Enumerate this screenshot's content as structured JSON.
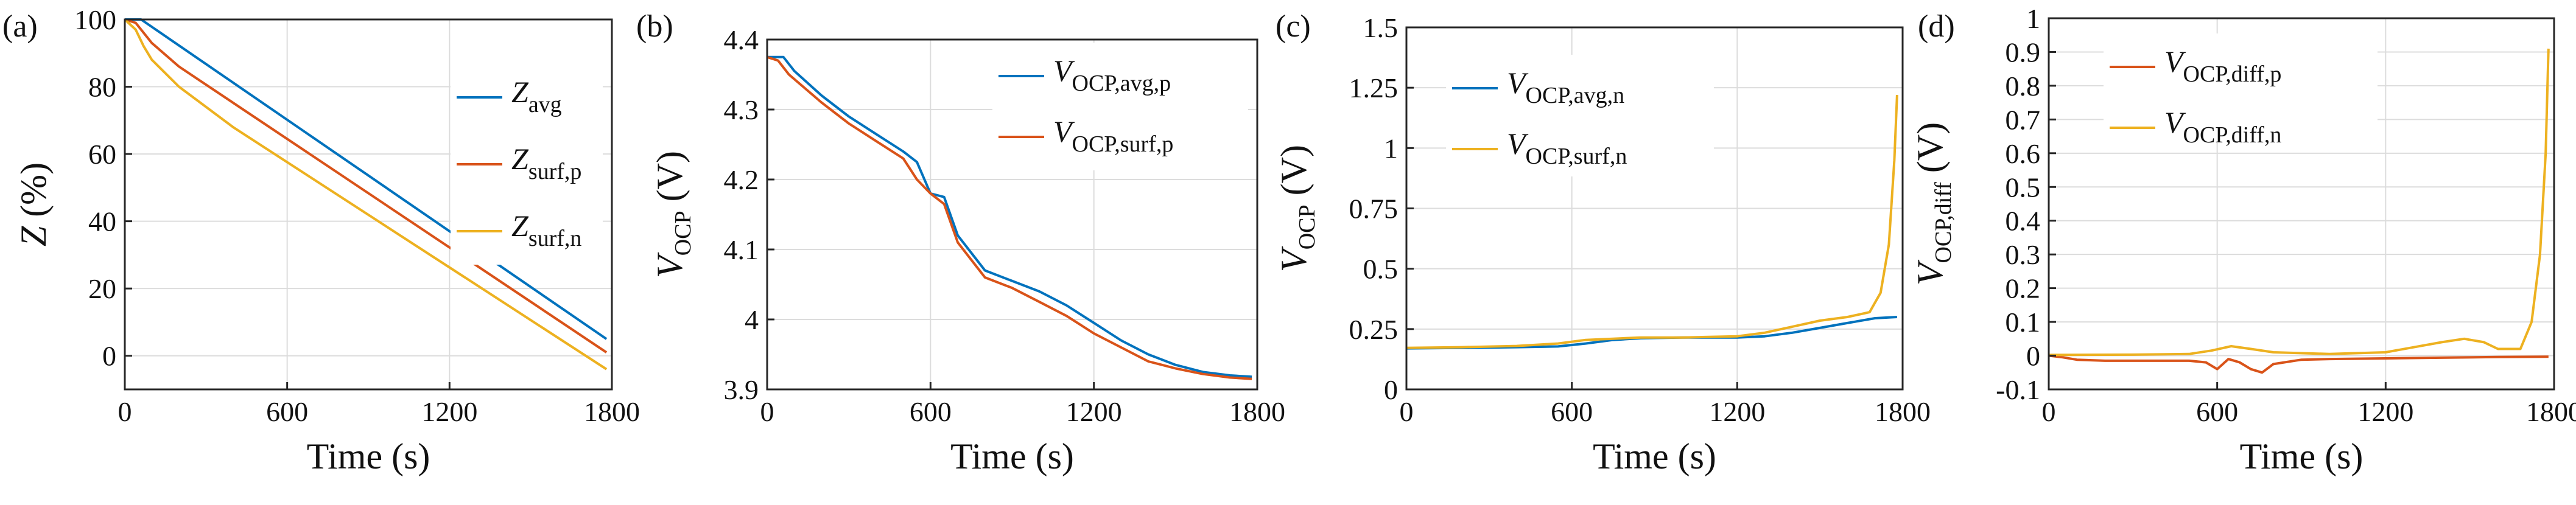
{
  "chart_data": [
    {
      "panel": "(a)",
      "type": "line",
      "xlabel": "Time (s)",
      "ylabel": "Z (%)",
      "ylabel_main": "Z",
      "ylabel_sub": "",
      "ylabel_tail": " (%)",
      "xlim": [
        0,
        1800
      ],
      "ylim": [
        -10,
        100
      ],
      "xticks": [
        0,
        600,
        1200,
        1800
      ],
      "yticks": [
        0,
        20,
        40,
        60,
        80,
        100
      ],
      "grid": true,
      "legend_position": "top-right",
      "series": [
        {
          "name": "Z_avg",
          "main": "Z",
          "sub": "avg",
          "color": "#0072BD",
          "x": [
            0,
            60,
            1780
          ],
          "y": [
            100,
            100,
            5
          ]
        },
        {
          "name": "Z_surf,p",
          "main": "Z",
          "sub": "surf,p",
          "color": "#D95319",
          "x": [
            0,
            40,
            70,
            100,
            200,
            1780
          ],
          "y": [
            100,
            99,
            96,
            93,
            86,
            1
          ]
        },
        {
          "name": "Z_surf,n",
          "main": "Z",
          "sub": "surf,n",
          "color": "#EDB120",
          "x": [
            0,
            40,
            70,
            100,
            200,
            400,
            1780
          ],
          "y": [
            100,
            97,
            92,
            88,
            80,
            68,
            -4
          ]
        }
      ]
    },
    {
      "panel": "(b)",
      "type": "line",
      "xlabel": "Time (s)",
      "ylabel": "V_OCP (V)",
      "ylabel_main": "V",
      "ylabel_sub": "OCP",
      "ylabel_tail": " (V)",
      "xlim": [
        0,
        1800
      ],
      "ylim": [
        3.9,
        4.4
      ],
      "xticks": [
        0,
        600,
        1200,
        1800
      ],
      "yticks": [
        3.9,
        4,
        4.1,
        4.2,
        4.3,
        4.4
      ],
      "grid": true,
      "legend_position": "top-right",
      "series": [
        {
          "name": "V_OCP,avg,p",
          "main": "V",
          "sub": "OCP,avg,p",
          "color": "#0072BD",
          "x": [
            0,
            60,
            100,
            200,
            300,
            400,
            500,
            550,
            600,
            650,
            700,
            800,
            900,
            1000,
            1100,
            1200,
            1300,
            1400,
            1500,
            1600,
            1700,
            1780
          ],
          "y": [
            4.375,
            4.375,
            4.355,
            4.32,
            4.29,
            4.265,
            4.24,
            4.225,
            4.18,
            4.175,
            4.12,
            4.07,
            4.055,
            4.04,
            4.02,
            3.995,
            3.97,
            3.95,
            3.935,
            3.925,
            3.92,
            3.918
          ]
        },
        {
          "name": "V_OCP,surf,p",
          "main": "V",
          "sub": "OCP,surf,p",
          "color": "#D95319",
          "x": [
            0,
            40,
            80,
            200,
            300,
            400,
            500,
            550,
            600,
            650,
            700,
            800,
            900,
            1000,
            1100,
            1200,
            1300,
            1400,
            1500,
            1600,
            1700,
            1780
          ],
          "y": [
            4.375,
            4.37,
            4.35,
            4.31,
            4.28,
            4.255,
            4.23,
            4.2,
            4.18,
            4.165,
            4.11,
            4.06,
            4.045,
            4.025,
            4.005,
            3.98,
            3.96,
            3.94,
            3.93,
            3.922,
            3.917,
            3.915
          ]
        }
      ]
    },
    {
      "panel": "(c)",
      "type": "line",
      "xlabel": "Time (s)",
      "ylabel": "V_OCP (V)",
      "ylabel_main": "V",
      "ylabel_sub": "OCP",
      "ylabel_tail": " (V)",
      "xlim": [
        0,
        1800
      ],
      "ylim": [
        0,
        1.5
      ],
      "xticks": [
        0,
        600,
        1200,
        1800
      ],
      "yticks": [
        0,
        0.25,
        0.5,
        0.75,
        1,
        1.25,
        1.5
      ],
      "grid": true,
      "legend_position": "top-left",
      "series": [
        {
          "name": "V_OCP,avg,n",
          "main": "V",
          "sub": "OCP,avg,n",
          "color": "#0072BD",
          "x": [
            0,
            200,
            400,
            550,
            650,
            750,
            850,
            1000,
            1200,
            1300,
            1400,
            1500,
            1600,
            1700,
            1780
          ],
          "y": [
            0.17,
            0.172,
            0.175,
            0.178,
            0.19,
            0.205,
            0.212,
            0.215,
            0.215,
            0.22,
            0.235,
            0.255,
            0.275,
            0.295,
            0.3
          ]
        },
        {
          "name": "V_OCP,surf,n",
          "main": "V",
          "sub": "OCP,surf,n",
          "color": "#EDB120",
          "x": [
            0,
            200,
            400,
            550,
            650,
            750,
            850,
            1000,
            1200,
            1300,
            1400,
            1500,
            1600,
            1680,
            1720,
            1750,
            1770,
            1780
          ],
          "y": [
            0.172,
            0.175,
            0.18,
            0.19,
            0.205,
            0.21,
            0.215,
            0.215,
            0.22,
            0.235,
            0.26,
            0.285,
            0.3,
            0.32,
            0.4,
            0.6,
            0.95,
            1.22
          ]
        }
      ]
    },
    {
      "panel": "(d)",
      "type": "line",
      "xlabel": "Time (s)",
      "ylabel": "V_OCP,diff (V)",
      "ylabel_main": "V",
      "ylabel_sub": "OCP,diff",
      "ylabel_tail": " (V)",
      "xlim": [
        0,
        1800
      ],
      "ylim": [
        -0.1,
        1
      ],
      "xticks": [
        0,
        600,
        1200,
        1800
      ],
      "yticks": [
        -0.1,
        0,
        0.1,
        0.2,
        0.3,
        0.4,
        0.5,
        0.6,
        0.7,
        0.8,
        0.9,
        1
      ],
      "grid": true,
      "legend_position": "top-left",
      "series": [
        {
          "name": "V_OCP,diff,p",
          "main": "V",
          "sub": "OCP,diff,p",
          "color": "#D95319",
          "x": [
            0,
            50,
            100,
            200,
            400,
            500,
            560,
            600,
            640,
            680,
            720,
            760,
            800,
            900,
            1000,
            1200,
            1400,
            1600,
            1780
          ],
          "y": [
            0,
            -0.005,
            -0.012,
            -0.015,
            -0.015,
            -0.015,
            -0.02,
            -0.04,
            -0.01,
            -0.02,
            -0.04,
            -0.05,
            -0.025,
            -0.012,
            -0.01,
            -0.008,
            -0.006,
            -0.004,
            -0.003
          ]
        },
        {
          "name": "V_OCP,diff,n",
          "main": "V",
          "sub": "OCP,diff,n",
          "color": "#EDB120",
          "x": [
            0,
            300,
            500,
            580,
            650,
            720,
            800,
            1000,
            1200,
            1300,
            1400,
            1480,
            1550,
            1600,
            1680,
            1720,
            1750,
            1770,
            1780
          ],
          "y": [
            0.002,
            0.003,
            0.005,
            0.015,
            0.028,
            0.02,
            0.01,
            0.005,
            0.01,
            0.025,
            0.04,
            0.05,
            0.04,
            0.02,
            0.02,
            0.1,
            0.3,
            0.6,
            0.91
          ]
        }
      ]
    }
  ]
}
